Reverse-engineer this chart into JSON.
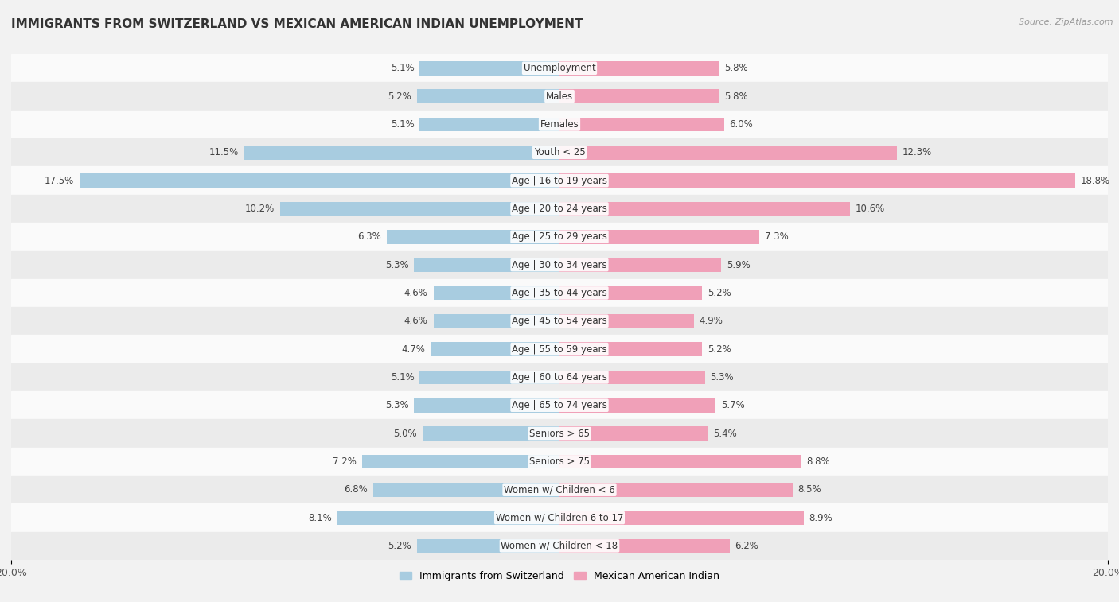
{
  "title": "IMMIGRANTS FROM SWITZERLAND VS MEXICAN AMERICAN INDIAN UNEMPLOYMENT",
  "source": "Source: ZipAtlas.com",
  "categories": [
    "Unemployment",
    "Males",
    "Females",
    "Youth < 25",
    "Age | 16 to 19 years",
    "Age | 20 to 24 years",
    "Age | 25 to 29 years",
    "Age | 30 to 34 years",
    "Age | 35 to 44 years",
    "Age | 45 to 54 years",
    "Age | 55 to 59 years",
    "Age | 60 to 64 years",
    "Age | 65 to 74 years",
    "Seniors > 65",
    "Seniors > 75",
    "Women w/ Children < 6",
    "Women w/ Children 6 to 17",
    "Women w/ Children < 18"
  ],
  "switzerland_values": [
    5.1,
    5.2,
    5.1,
    11.5,
    17.5,
    10.2,
    6.3,
    5.3,
    4.6,
    4.6,
    4.7,
    5.1,
    5.3,
    5.0,
    7.2,
    6.8,
    8.1,
    5.2
  ],
  "mexican_values": [
    5.8,
    5.8,
    6.0,
    12.3,
    18.8,
    10.6,
    7.3,
    5.9,
    5.2,
    4.9,
    5.2,
    5.3,
    5.7,
    5.4,
    8.8,
    8.5,
    8.9,
    6.2
  ],
  "switzerland_color": "#a8cce0",
  "mexican_color": "#f0a0b8",
  "background_color": "#f2f2f2",
  "row_colors": [
    "#fafafa",
    "#ebebeb"
  ],
  "axis_limit": 20.0,
  "legend_switzerland": "Immigrants from Switzerland",
  "legend_mexican": "Mexican American Indian",
  "bar_height": 0.5,
  "label_fontsize": 8.5,
  "title_fontsize": 11,
  "source_fontsize": 8
}
